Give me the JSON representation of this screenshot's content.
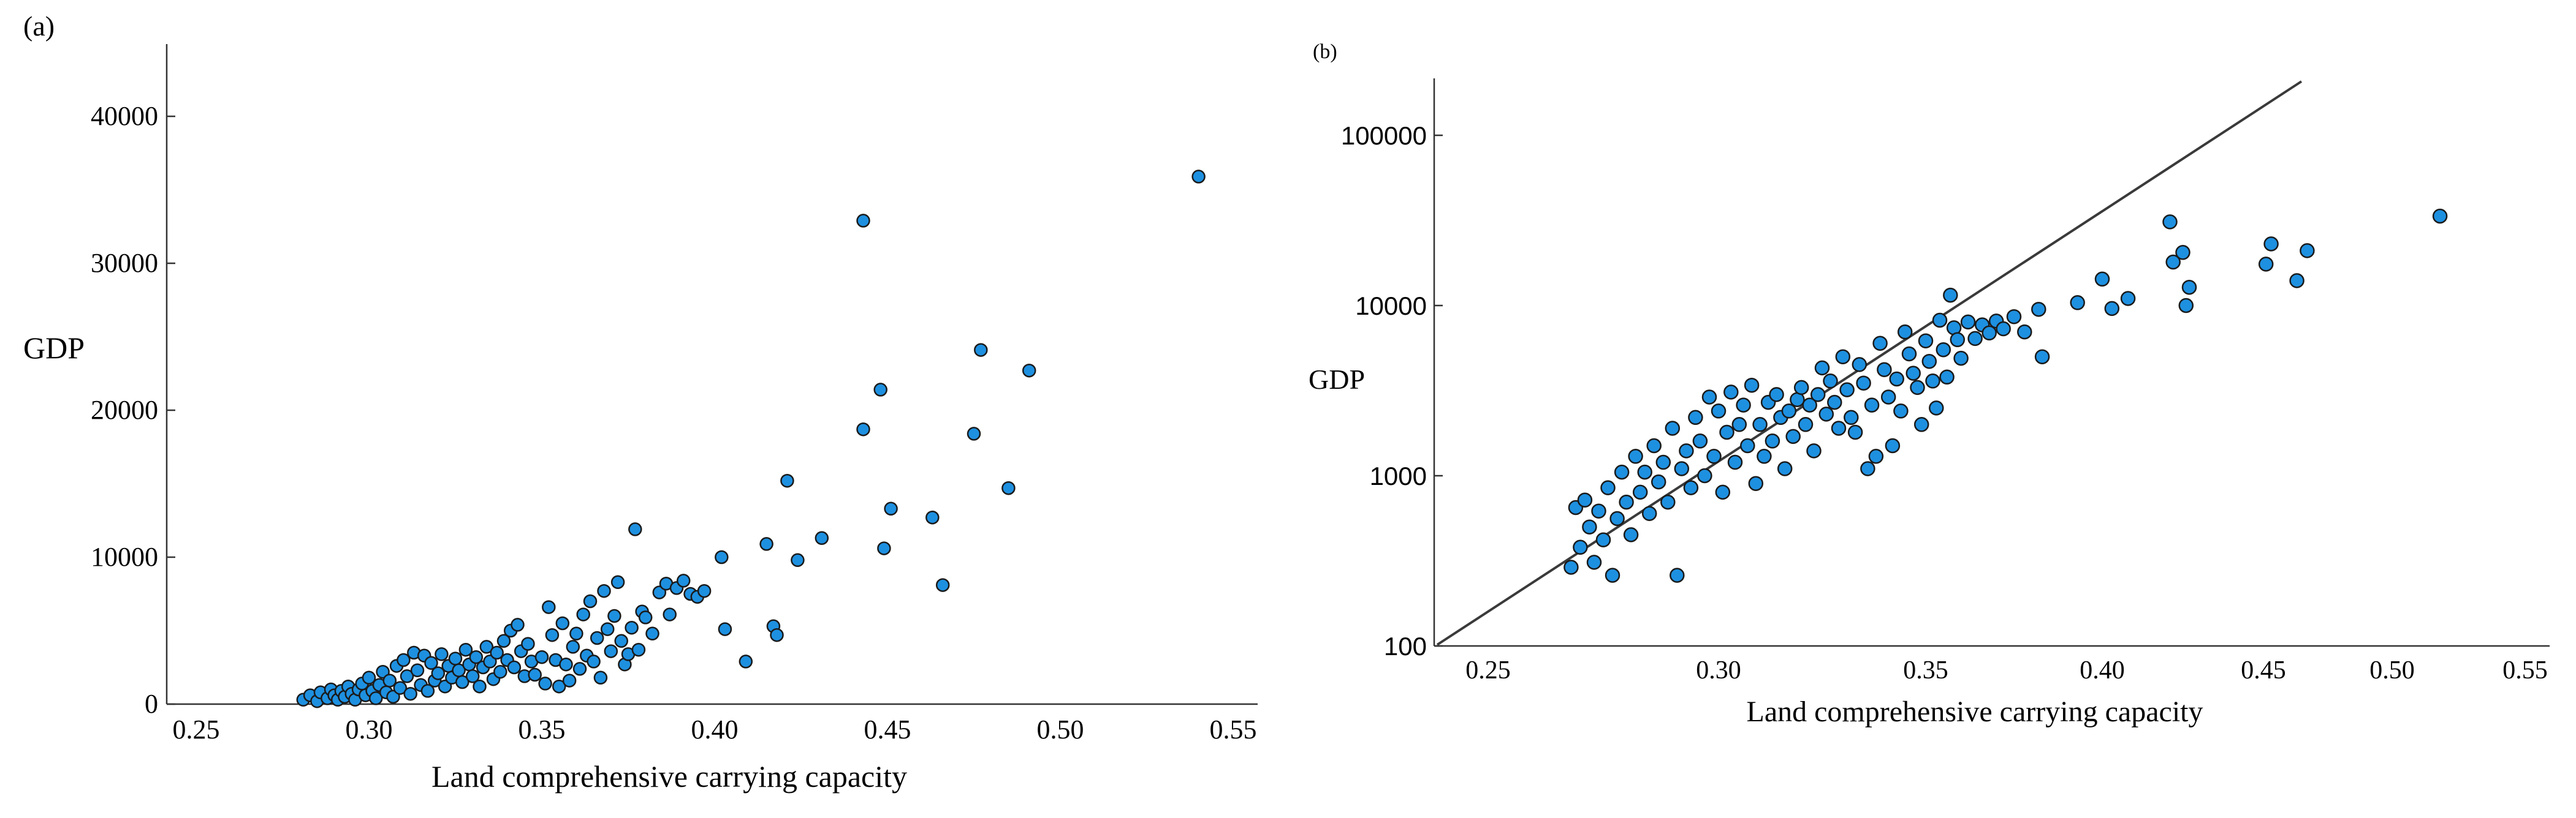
{
  "chart_data": [
    {
      "panel_label": "(a)",
      "type": "scatter",
      "xlabel": "Land comprehensive carrying capacity",
      "ylabel": "GDP",
      "xlim": [
        0.235,
        0.57
      ],
      "ylim": [
        0,
        44000
      ],
      "x_ticks": [
        0.25,
        0.3,
        0.35,
        0.4,
        0.45,
        0.5,
        0.55
      ],
      "x_tick_labels": [
        "0.25",
        "0.30",
        "0.35",
        "0.40",
        "0.45",
        "0.50",
        "0.55"
      ],
      "y_ticks": [
        0,
        10000,
        20000,
        30000,
        40000
      ],
      "y_tick_labels": [
        "0",
        "10000",
        "20000",
        "30000",
        "40000"
      ],
      "y_scale": "linear",
      "grid": false,
      "marker_color": "#1e90e0",
      "points": [
        [
          0.281,
          300
        ],
        [
          0.283,
          600
        ],
        [
          0.285,
          200
        ],
        [
          0.286,
          800
        ],
        [
          0.288,
          400
        ],
        [
          0.289,
          1000
        ],
        [
          0.29,
          600
        ],
        [
          0.291,
          300
        ],
        [
          0.292,
          900
        ],
        [
          0.293,
          500
        ],
        [
          0.294,
          1200
        ],
        [
          0.295,
          700
        ],
        [
          0.296,
          300
        ],
        [
          0.297,
          1000
        ],
        [
          0.298,
          1400
        ],
        [
          0.299,
          600
        ],
        [
          0.3,
          1800
        ],
        [
          0.301,
          900
        ],
        [
          0.302,
          400
        ],
        [
          0.303,
          1300
        ],
        [
          0.304,
          2200
        ],
        [
          0.305,
          800
        ],
        [
          0.306,
          1600
        ],
        [
          0.307,
          500
        ],
        [
          0.308,
          2600
        ],
        [
          0.309,
          1100
        ],
        [
          0.31,
          3000
        ],
        [
          0.311,
          1900
        ],
        [
          0.312,
          700
        ],
        [
          0.313,
          3500
        ],
        [
          0.314,
          2300
        ],
        [
          0.315,
          1300
        ],
        [
          0.316,
          3300
        ],
        [
          0.317,
          900
        ],
        [
          0.318,
          2800
        ],
        [
          0.319,
          1600
        ],
        [
          0.32,
          2100
        ],
        [
          0.321,
          3400
        ],
        [
          0.322,
          1200
        ],
        [
          0.323,
          2600
        ],
        [
          0.324,
          1800
        ],
        [
          0.325,
          3100
        ],
        [
          0.326,
          2300
        ],
        [
          0.327,
          1500
        ],
        [
          0.328,
          3700
        ],
        [
          0.329,
          2700
        ],
        [
          0.33,
          1900
        ],
        [
          0.331,
          3200
        ],
        [
          0.332,
          1200
        ],
        [
          0.333,
          2500
        ],
        [
          0.334,
          3900
        ],
        [
          0.335,
          2900
        ],
        [
          0.336,
          1700
        ],
        [
          0.337,
          3500
        ],
        [
          0.338,
          2200
        ],
        [
          0.339,
          4300
        ],
        [
          0.34,
          3000
        ],
        [
          0.341,
          5000
        ],
        [
          0.342,
          2500
        ],
        [
          0.343,
          5400
        ],
        [
          0.344,
          3600
        ],
        [
          0.345,
          1900
        ],
        [
          0.346,
          4100
        ],
        [
          0.347,
          2900
        ],
        [
          0.348,
          2000
        ],
        [
          0.35,
          3200
        ],
        [
          0.351,
          1400
        ],
        [
          0.352,
          6600
        ],
        [
          0.353,
          4700
        ],
        [
          0.354,
          3000
        ],
        [
          0.355,
          1200
        ],
        [
          0.356,
          5500
        ],
        [
          0.357,
          2700
        ],
        [
          0.358,
          1600
        ],
        [
          0.359,
          3900
        ],
        [
          0.36,
          4800
        ],
        [
          0.361,
          2400
        ],
        [
          0.362,
          6100
        ],
        [
          0.363,
          3300
        ],
        [
          0.364,
          7000
        ],
        [
          0.365,
          2900
        ],
        [
          0.366,
          4500
        ],
        [
          0.367,
          1800
        ],
        [
          0.368,
          7700
        ],
        [
          0.369,
          5100
        ],
        [
          0.37,
          3600
        ],
        [
          0.371,
          6000
        ],
        [
          0.372,
          8300
        ],
        [
          0.373,
          4300
        ],
        [
          0.374,
          2700
        ],
        [
          0.375,
          3400
        ],
        [
          0.376,
          5200
        ],
        [
          0.377,
          11900
        ],
        [
          0.378,
          3700
        ],
        [
          0.379,
          6300
        ],
        [
          0.38,
          5900
        ],
        [
          0.382,
          4800
        ],
        [
          0.384,
          7600
        ],
        [
          0.386,
          8200
        ],
        [
          0.387,
          6100
        ],
        [
          0.389,
          7900
        ],
        [
          0.391,
          8400
        ],
        [
          0.393,
          7500
        ],
        [
          0.395,
          7300
        ],
        [
          0.397,
          7700
        ],
        [
          0.402,
          10000
        ],
        [
          0.403,
          5100
        ],
        [
          0.409,
          2900
        ],
        [
          0.415,
          10900
        ],
        [
          0.417,
          5300
        ],
        [
          0.418,
          4700
        ],
        [
          0.421,
          15200
        ],
        [
          0.424,
          9800
        ],
        [
          0.431,
          11300
        ],
        [
          0.443,
          32900
        ],
        [
          0.443,
          18700
        ],
        [
          0.448,
          21400
        ],
        [
          0.449,
          10600
        ],
        [
          0.451,
          13300
        ],
        [
          0.463,
          12700
        ],
        [
          0.466,
          8100
        ],
        [
          0.475,
          18400
        ],
        [
          0.477,
          24100
        ],
        [
          0.485,
          14700
        ],
        [
          0.491,
          22700
        ],
        [
          0.54,
          35900
        ]
      ]
    },
    {
      "panel_label": "(b)",
      "type": "scatter",
      "xlabel": "Land comprehensive carrying capacity",
      "ylabel": "GDP",
      "xlim": [
        0.24,
        0.555
      ],
      "ylim": [
        100,
        200000
      ],
      "x_ticks": [
        0.25,
        0.3,
        0.35,
        0.4,
        0.45,
        0.5,
        0.55
      ],
      "x_tick_labels": [
        "0.25",
        "0.30",
        "0.35",
        "0.40",
        "0.45",
        "0.50",
        "0.55"
      ],
      "y_ticks": [
        100,
        1000,
        10000,
        100000
      ],
      "y_tick_labels": [
        "100",
        "1000",
        "10000",
        "100000"
      ],
      "y_scale": "log",
      "grid": false,
      "marker_color": "#1e90e0",
      "points": [
        [
          0.268,
          290
        ],
        [
          0.269,
          650
        ],
        [
          0.27,
          380
        ],
        [
          0.271,
          720
        ],
        [
          0.272,
          500
        ],
        [
          0.273,
          310
        ],
        [
          0.274,
          620
        ],
        [
          0.275,
          420
        ],
        [
          0.276,
          850
        ],
        [
          0.277,
          260
        ],
        [
          0.278,
          560
        ],
        [
          0.279,
          1050
        ],
        [
          0.28,
          700
        ],
        [
          0.281,
          450
        ],
        [
          0.282,
          1300
        ],
        [
          0.283,
          800
        ],
        [
          0.284,
          1050
        ],
        [
          0.285,
          600
        ],
        [
          0.286,
          1500
        ],
        [
          0.287,
          920
        ],
        [
          0.288,
          1200
        ],
        [
          0.289,
          700
        ],
        [
          0.29,
          1900
        ],
        [
          0.291,
          260
        ],
        [
          0.292,
          1100
        ],
        [
          0.293,
          1400
        ],
        [
          0.294,
          850
        ],
        [
          0.295,
          2200
        ],
        [
          0.296,
          1600
        ],
        [
          0.297,
          1000
        ],
        [
          0.298,
          2900
        ],
        [
          0.299,
          1300
        ],
        [
          0.3,
          2400
        ],
        [
          0.301,
          800
        ],
        [
          0.302,
          1800
        ],
        [
          0.303,
          3100
        ],
        [
          0.304,
          1200
        ],
        [
          0.305,
          2000
        ],
        [
          0.306,
          2600
        ],
        [
          0.307,
          1500
        ],
        [
          0.308,
          3400
        ],
        [
          0.309,
          900
        ],
        [
          0.31,
          2000
        ],
        [
          0.311,
          1300
        ],
        [
          0.312,
          2700
        ],
        [
          0.313,
          1600
        ],
        [
          0.314,
          3000
        ],
        [
          0.315,
          2200
        ],
        [
          0.316,
          1100
        ],
        [
          0.317,
          2400
        ],
        [
          0.318,
          1700
        ],
        [
          0.319,
          2800
        ],
        [
          0.32,
          3300
        ],
        [
          0.321,
          2000
        ],
        [
          0.322,
          2600
        ],
        [
          0.323,
          1400
        ],
        [
          0.324,
          3000
        ],
        [
          0.325,
          4300
        ],
        [
          0.326,
          2300
        ],
        [
          0.327,
          3600
        ],
        [
          0.328,
          2700
        ],
        [
          0.329,
          1900
        ],
        [
          0.33,
          5000
        ],
        [
          0.331,
          3200
        ],
        [
          0.332,
          2200
        ],
        [
          0.333,
          1800
        ],
        [
          0.334,
          4500
        ],
        [
          0.335,
          3500
        ],
        [
          0.336,
          1100
        ],
        [
          0.337,
          2600
        ],
        [
          0.338,
          1300
        ],
        [
          0.339,
          6000
        ],
        [
          0.34,
          4200
        ],
        [
          0.341,
          2900
        ],
        [
          0.342,
          1500
        ],
        [
          0.343,
          3700
        ],
        [
          0.344,
          2400
        ],
        [
          0.345,
          7000
        ],
        [
          0.346,
          5200
        ],
        [
          0.347,
          4000
        ],
        [
          0.348,
          3300
        ],
        [
          0.349,
          2000
        ],
        [
          0.35,
          6200
        ],
        [
          0.351,
          4700
        ],
        [
          0.352,
          3600
        ],
        [
          0.353,
          2500
        ],
        [
          0.354,
          8200
        ],
        [
          0.355,
          5500
        ],
        [
          0.356,
          3800
        ],
        [
          0.357,
          11500
        ],
        [
          0.358,
          7400
        ],
        [
          0.359,
          6300
        ],
        [
          0.36,
          4900
        ],
        [
          0.362,
          8000
        ],
        [
          0.364,
          6400
        ],
        [
          0.366,
          7700
        ],
        [
          0.368,
          6900
        ],
        [
          0.37,
          8100
        ],
        [
          0.372,
          7300
        ],
        [
          0.375,
          8600
        ],
        [
          0.378,
          7000
        ],
        [
          0.382,
          9500
        ],
        [
          0.383,
          5000
        ],
        [
          0.393,
          10400
        ],
        [
          0.4,
          14300
        ],
        [
          0.403,
          9600
        ],
        [
          0.408,
          11000
        ],
        [
          0.421,
          31000
        ],
        [
          0.422,
          18000
        ],
        [
          0.425,
          20500
        ],
        [
          0.426,
          10000
        ],
        [
          0.427,
          12800
        ],
        [
          0.451,
          17500
        ],
        [
          0.453,
          23000
        ],
        [
          0.463,
          14000
        ],
        [
          0.467,
          21000
        ],
        [
          0.518,
          33500
        ]
      ]
    }
  ]
}
